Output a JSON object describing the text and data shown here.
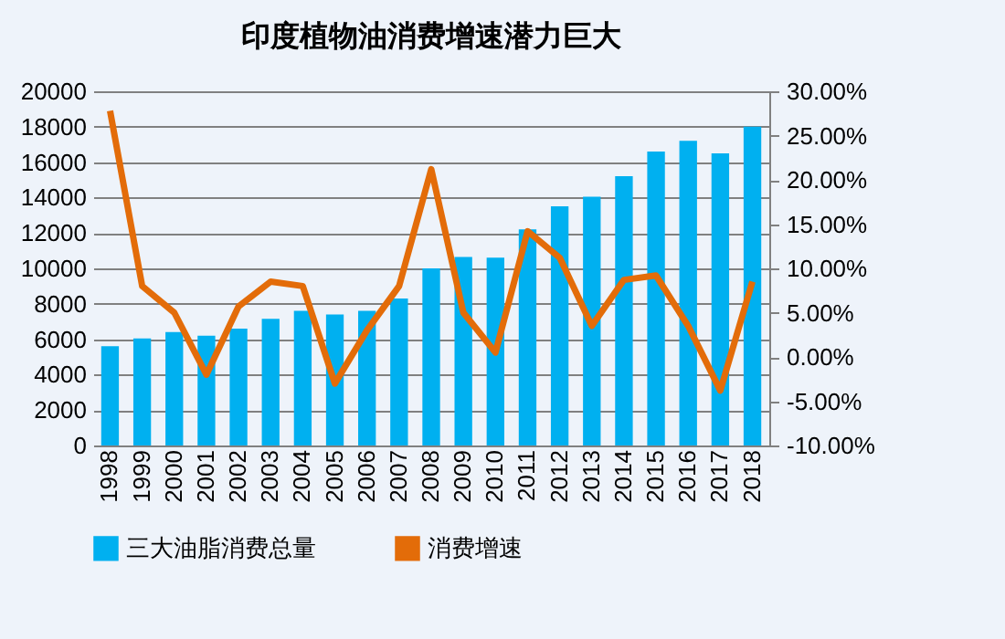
{
  "chart_data": {
    "type": "bar",
    "title": "印度植物油消费增速潜力巨大",
    "categories": [
      "1998",
      "1999",
      "2000",
      "2001",
      "2002",
      "2003",
      "2004",
      "2005",
      "2006",
      "2007",
      "2008",
      "2009",
      "2010",
      "2011",
      "2012",
      "2013",
      "2014",
      "2015",
      "2016",
      "2017",
      "2018"
    ],
    "series": [
      {
        "name": "三大油脂消费总量",
        "color": "#00b0f0",
        "values": [
          5600,
          6050,
          6400,
          6200,
          6600,
          7150,
          7600,
          7400,
          7600,
          8300,
          10000,
          10650,
          10600,
          12200,
          13500,
          14050,
          15200,
          16600,
          17200,
          16500,
          18000
        ]
      },
      {
        "name": "消费增速",
        "type": "line",
        "axis": "y2",
        "color": "#e36c09",
        "values": [
          27.8,
          8,
          5,
          -2,
          5.7,
          8.5,
          8,
          -3,
          3,
          8,
          21.2,
          5,
          0.5,
          14.2,
          11.2,
          3.5,
          8.7,
          9.2,
          3.5,
          -3.8,
          8.5
        ]
      }
    ],
    "ylim": [
      0,
      20000
    ],
    "yticks": [
      0,
      2000,
      4000,
      6000,
      8000,
      10000,
      12000,
      14000,
      16000,
      18000,
      20000
    ],
    "y2lim": [
      -10,
      30
    ],
    "y2ticks": [
      {
        "value": -10,
        "label": "-10.00%"
      },
      {
        "value": -5,
        "label": "-5.00%"
      },
      {
        "value": 0,
        "label": "0.00%"
      },
      {
        "value": 5,
        "label": "5.00%"
      },
      {
        "value": 10,
        "label": "10.00%"
      },
      {
        "value": 15,
        "label": "15.00%"
      },
      {
        "value": 20,
        "label": "20.00%"
      },
      {
        "value": 25,
        "label": "25.00%"
      },
      {
        "value": 30,
        "label": "30.00%"
      }
    ],
    "grid": "y",
    "legend": "bottom",
    "marker": "none",
    "line_style": "solid"
  }
}
